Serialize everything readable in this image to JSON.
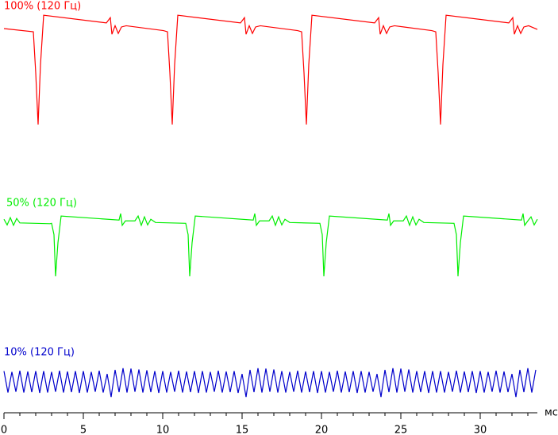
{
  "chart_data": {
    "type": "line",
    "x_axis_label": "мс",
    "xlim": [
      0,
      33.6
    ],
    "xticks": [
      0,
      5,
      10,
      15,
      20,
      25,
      30
    ],
    "x_minor_ticks": [
      1,
      2,
      3,
      4,
      6,
      7,
      8,
      9,
      11,
      12,
      13,
      14,
      16,
      17,
      18,
      19,
      21,
      22,
      23,
      24,
      26,
      27,
      28,
      29,
      31,
      32,
      33
    ],
    "ylim": [
      0,
      100
    ],
    "series": [
      {
        "name": "100% (120 Гц)",
        "color": "#ff0000",
        "x": [
          0,
          1.85,
          2.0,
          2.15,
          2.3,
          2.5,
          6.45,
          6.7,
          6.8,
          7.0,
          7.2,
          7.4,
          7.7,
          10.05,
          10.3,
          10.45,
          10.6,
          10.75,
          10.95,
          14.9,
          15.15,
          15.25,
          15.45,
          15.65,
          15.85,
          16.15,
          18.5,
          18.75,
          18.9,
          19.05,
          19.2,
          19.4,
          23.35,
          23.6,
          23.7,
          23.9,
          24.1,
          24.3,
          24.6,
          26.95,
          27.2,
          27.35,
          27.5,
          27.65,
          27.85,
          31.8,
          32.05,
          32.15,
          32.35,
          32.55,
          32.75,
          33.05,
          33.6
        ],
        "values": [
          94.9,
          94.1,
          84,
          71.2,
          86,
          98.2,
          96.3,
          97.6,
          93.5,
          95.6,
          93.7,
          95.3,
          95.6,
          94.4,
          94.1,
          84,
          71.2,
          86,
          98.2,
          96.3,
          97.6,
          93.5,
          95.6,
          93.7,
          95.3,
          95.6,
          94.4,
          94.1,
          84,
          71.2,
          86,
          98.2,
          96.3,
          97.6,
          93.5,
          95.6,
          93.7,
          95.3,
          95.6,
          94.4,
          94.1,
          84,
          71.2,
          86,
          98.2,
          96.3,
          97.6,
          93.5,
          95.6,
          93.7,
          95.3,
          95.6,
          94.7
        ]
      },
      {
        "name": "50% (120 Гц)",
        "color": "#00ee00",
        "x": [
          0,
          0.2,
          0.4,
          0.6,
          0.8,
          1.0,
          2.9,
          3.0,
          3.15,
          3.25,
          3.4,
          3.6,
          7.25,
          7.35,
          7.45,
          7.65,
          8.25,
          8.45,
          8.65,
          8.85,
          9.05,
          9.25,
          9.55,
          11.45,
          11.6,
          11.7,
          11.85,
          12.05,
          15.7,
          15.8,
          15.9,
          16.1,
          16.7,
          16.9,
          17.1,
          17.3,
          17.5,
          17.7,
          18.0,
          19.9,
          20.05,
          20.15,
          20.3,
          20.5,
          24.15,
          24.25,
          24.35,
          24.55,
          25.15,
          25.35,
          25.55,
          25.75,
          25.95,
          26.15,
          26.45,
          28.35,
          28.5,
          28.6,
          28.75,
          28.95,
          32.6,
          32.7,
          32.8,
          33.0,
          33.2,
          33.4,
          33.6
        ],
        "values": [
          47.8,
          46.4,
          48.2,
          46.3,
          48.0,
          46.9,
          46.7,
          46.8,
          44,
          33.7,
          42,
          48.6,
          47.6,
          49.2,
          46.3,
          47.4,
          47.4,
          48.6,
          46.3,
          48.4,
          46.4,
          47.8,
          47.0,
          46.8,
          44,
          33.7,
          42,
          48.6,
          47.6,
          49.2,
          46.3,
          47.4,
          47.4,
          48.6,
          46.3,
          48.4,
          46.4,
          47.8,
          47.0,
          46.8,
          44,
          33.7,
          42,
          48.6,
          47.6,
          49.2,
          46.3,
          47.4,
          47.4,
          48.6,
          46.3,
          48.4,
          46.4,
          47.8,
          47.0,
          46.8,
          44,
          33.7,
          42,
          48.6,
          47.6,
          49.2,
          46.3,
          47.4,
          48.4,
          46.4,
          47.8
        ]
      },
      {
        "name": "10% (120 Гц)",
        "color": "#0000cc",
        "x": [
          0,
          0.25,
          0.5,
          0.75,
          1,
          1.25,
          1.5,
          1.75,
          2,
          2.25,
          2.5,
          2.75,
          3,
          3.25,
          3.5,
          3.75,
          4,
          4.25,
          4.5,
          4.75,
          5,
          5.25,
          5.5,
          5.75,
          6,
          6.25,
          6.5,
          6.75,
          7,
          7.25,
          7.5,
          7.75,
          8,
          8.25,
          8.5,
          8.75,
          9,
          9.25,
          9.5,
          9.75,
          10,
          10.25,
          10.5,
          10.75,
          11,
          11.25,
          11.5,
          11.75,
          12,
          12.25,
          12.5,
          12.75,
          13,
          13.25,
          13.5,
          13.75,
          14,
          14.25,
          14.5,
          14.75,
          15,
          15.25,
          15.5,
          15.75,
          16,
          16.25,
          16.5,
          16.75,
          17,
          17.25,
          17.5,
          17.75,
          18,
          18.25,
          18.5,
          18.75,
          19,
          19.25,
          19.5,
          19.75,
          20,
          20.25,
          20.5,
          20.75,
          21,
          21.25,
          21.5,
          21.75,
          22,
          22.25,
          22.5,
          22.75,
          23,
          23.25,
          23.5,
          23.75,
          24,
          24.25,
          24.5,
          24.75,
          25,
          25.25,
          25.5,
          25.75,
          26,
          26.25,
          26.5,
          26.75,
          27,
          27.25,
          27.5,
          27.75,
          28,
          28.25,
          28.5,
          28.75,
          29,
          29.25,
          29.5,
          29.75,
          30,
          30.25,
          30.5,
          30.75,
          31,
          31.25,
          31.5,
          31.75,
          32,
          32.25,
          32.5,
          32.75,
          33,
          33.25,
          33.5
        ],
        "values": [
          10.3,
          5.0,
          10.1,
          5.2,
          10.4,
          5.0,
          10.2,
          5.1,
          10.3,
          4.9,
          10.3,
          5.0,
          10.1,
          5.2,
          10.4,
          5.0,
          10.2,
          5.1,
          10.3,
          4.9,
          10.3,
          5.0,
          10.1,
          5.2,
          10.4,
          5.0,
          9.6,
          3.9,
          10.6,
          5.1,
          11.0,
          5.0,
          10.9,
          5.2,
          10.7,
          5.0,
          10.5,
          5.1,
          10.3,
          4.9,
          10.3,
          5.0,
          10.1,
          5.2,
          10.4,
          5.0,
          10.2,
          5.1,
          10.3,
          4.9,
          10.3,
          5.0,
          10.1,
          5.2,
          10.4,
          5.0,
          10.2,
          5.1,
          10.3,
          4.9,
          9.6,
          3.9,
          10.6,
          5.1,
          11.0,
          5.0,
          10.9,
          5.2,
          10.7,
          5.0,
          10.3,
          5.0,
          10.1,
          5.2,
          10.4,
          5.0,
          10.2,
          5.1,
          10.3,
          4.9,
          10.3,
          5.0,
          10.1,
          5.2,
          10.4,
          5.0,
          10.2,
          5.1,
          10.3,
          4.9,
          10.3,
          5.0,
          10.1,
          5.2,
          9.6,
          3.9,
          10.6,
          5.1,
          11.0,
          5.0,
          10.9,
          5.2,
          10.7,
          5.0,
          10.3,
          5.1,
          10.3,
          4.9,
          10.3,
          5.0,
          10.3,
          5.0,
          10.1,
          5.2,
          10.4,
          5.0,
          10.2,
          5.1,
          10.3,
          4.9,
          10.3,
          5.0,
          10.1,
          5.2,
          10.4,
          5.0,
          10.2,
          5.1,
          9.6,
          3.9,
          10.6,
          5.1,
          11.0,
          5.0,
          10.6
        ]
      }
    ]
  }
}
